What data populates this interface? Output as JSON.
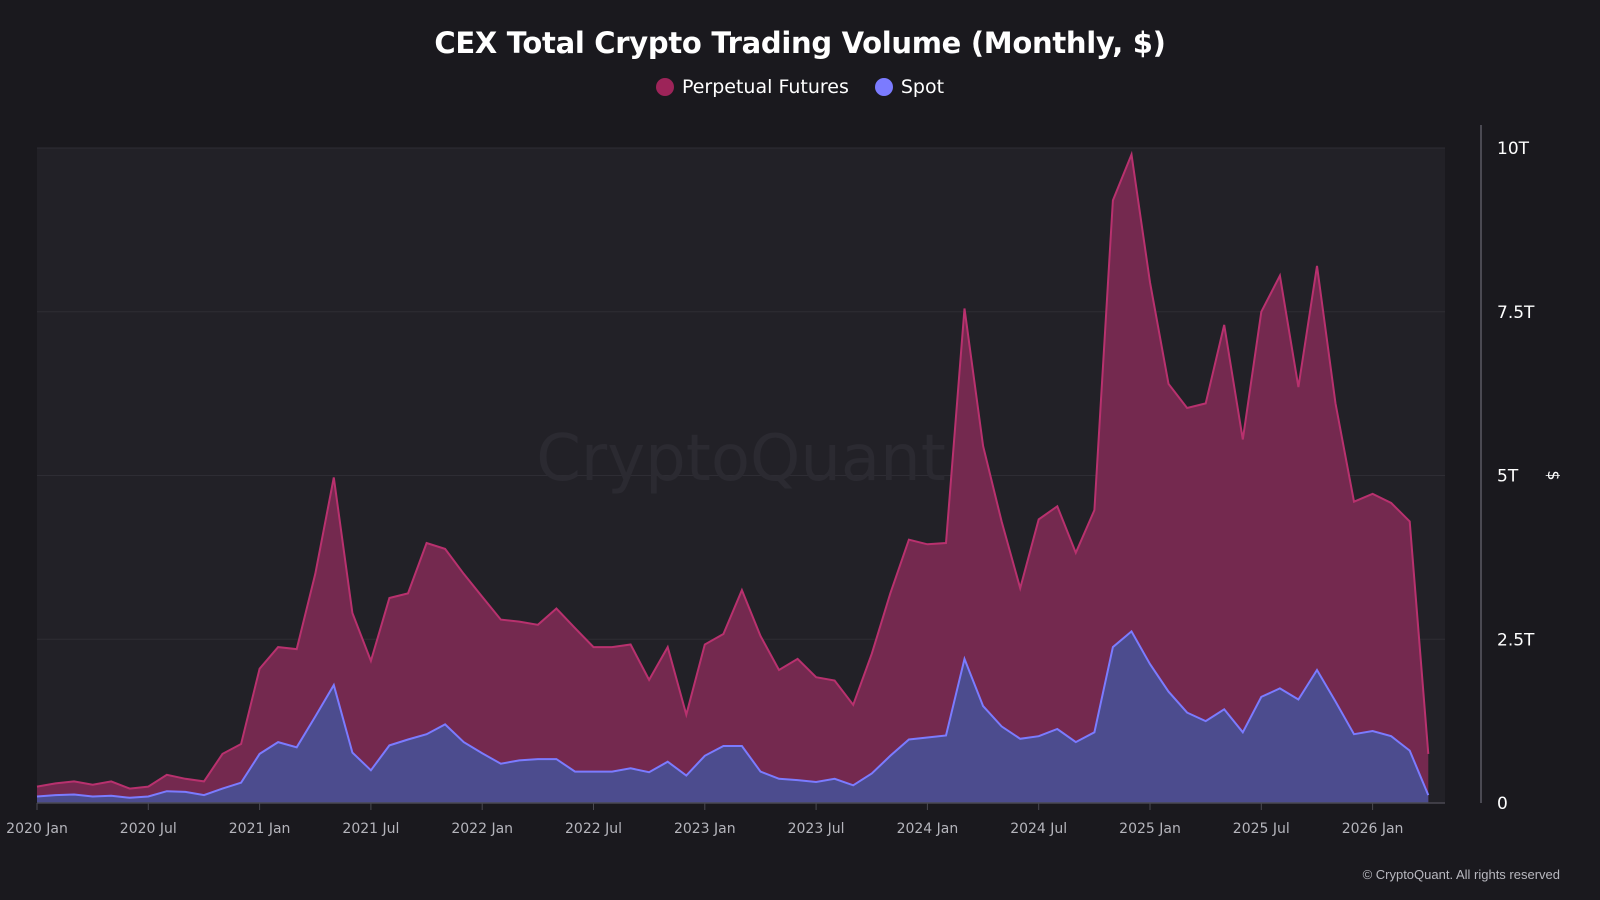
{
  "title": "CEX Total Crypto Trading Volume (Monthly, $)",
  "copyright": "© CryptoQuant. All rights reserved",
  "watermark": "CryptoQuant",
  "colors": {
    "background": "#1a191e",
    "plot_background": "#222127",
    "futures_line": "#b8316e",
    "futures_fill": "#74294f",
    "spot_line": "#7b7bff",
    "spot_fill": "#4c4c8e",
    "legend_futures": "#9d2459",
    "legend_spot": "#7b7bff"
  },
  "chart_data": {
    "type": "area",
    "title": "CEX Total Crypto Trading Volume (Monthly, $)",
    "xlabel": "",
    "ylabel": "$",
    "ylim": [
      0,
      10
    ],
    "y_unit": "T",
    "grid": true,
    "legend_position": "top-center",
    "y_ticks": [
      "0",
      "2.5T",
      "5T",
      "7.5T",
      "10T"
    ],
    "y_tick_values": [
      0,
      2.5,
      5,
      7.5,
      10
    ],
    "x_tick_labels": [
      "2020 Jan",
      "2020 Jul",
      "2021 Jan",
      "2021 Jul",
      "2022 Jan",
      "2022 Jul",
      "2023 Jan",
      "2023 Jul",
      "2024 Jan",
      "2024 Jul",
      "2025 Jan",
      "2025 Jul",
      "2026 Jan"
    ],
    "x_tick_month_index": [
      0,
      6,
      12,
      18,
      24,
      30,
      36,
      42,
      48,
      54,
      60,
      66,
      72
    ],
    "x_start": "2020-01",
    "x_end": "2026-04",
    "series": [
      {
        "name": "Perpetual Futures",
        "values": [
          0.25,
          0.3,
          0.33,
          0.28,
          0.33,
          0.22,
          0.25,
          0.43,
          0.37,
          0.33,
          0.75,
          0.9,
          2.05,
          2.38,
          2.35,
          3.5,
          4.97,
          2.9,
          2.17,
          3.13,
          3.2,
          3.97,
          3.88,
          3.5,
          3.15,
          2.8,
          2.77,
          2.72,
          2.97,
          2.67,
          2.38,
          2.38,
          2.42,
          1.88,
          2.38,
          1.35,
          2.42,
          2.58,
          3.25,
          2.55,
          2.03,
          2.2,
          1.92,
          1.87,
          1.5,
          2.28,
          3.2,
          4.02,
          3.95,
          3.97,
          7.55,
          5.45,
          4.3,
          3.28,
          4.33,
          4.53,
          3.82,
          4.47,
          9.2,
          9.9,
          7.95,
          6.4,
          6.03,
          6.1,
          7.3,
          5.55,
          7.5,
          8.05,
          6.35,
          8.2,
          6.1,
          4.6,
          4.72,
          4.58,
          4.3,
          0.75
        ]
      },
      {
        "name": "Spot",
        "values": [
          0.1,
          0.12,
          0.13,
          0.1,
          0.11,
          0.08,
          0.1,
          0.18,
          0.17,
          0.12,
          0.22,
          0.31,
          0.75,
          0.93,
          0.85,
          1.32,
          1.8,
          0.77,
          0.5,
          0.88,
          0.97,
          1.05,
          1.2,
          0.93,
          0.76,
          0.6,
          0.65,
          0.67,
          0.67,
          0.48,
          0.48,
          0.48,
          0.53,
          0.47,
          0.63,
          0.42,
          0.72,
          0.87,
          0.87,
          0.48,
          0.37,
          0.35,
          0.32,
          0.37,
          0.27,
          0.45,
          0.72,
          0.97,
          1.0,
          1.03,
          2.2,
          1.48,
          1.17,
          0.98,
          1.02,
          1.13,
          0.93,
          1.08,
          2.38,
          2.62,
          2.12,
          1.7,
          1.38,
          1.25,
          1.43,
          1.08,
          1.62,
          1.75,
          1.58,
          2.03,
          1.55,
          1.05,
          1.1,
          1.02,
          0.8,
          0.12
        ]
      }
    ]
  }
}
